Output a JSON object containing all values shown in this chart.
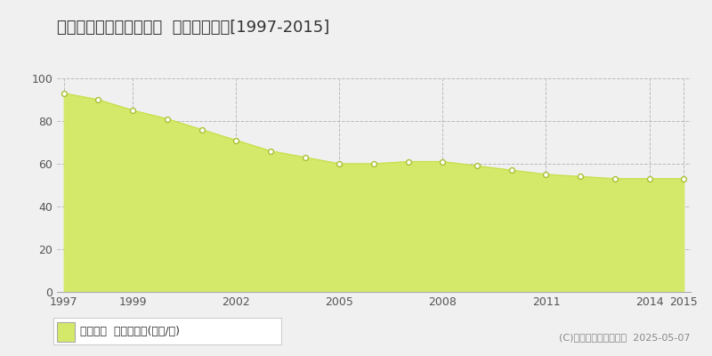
{
  "title": "大阪市住之江区北加賀屋  基準地価推移[1997-2015]",
  "years": [
    1997,
    1998,
    1999,
    2000,
    2001,
    2002,
    2003,
    2004,
    2005,
    2006,
    2007,
    2008,
    2009,
    2010,
    2011,
    2012,
    2013,
    2014,
    2015
  ],
  "values": [
    93,
    90,
    85,
    81,
    76,
    71,
    66,
    63,
    60,
    60,
    61,
    61,
    59,
    57,
    55,
    54,
    53,
    53,
    53
  ],
  "fill_color": "#d4e96a",
  "line_color": "#c8e050",
  "marker_facecolor": "white",
  "marker_edgecolor": "#a8c030",
  "background_color": "#f0f0f0",
  "plot_bg_color": "#f0f0f0",
  "grid_color": "#bbbbbb",
  "ylim": [
    0,
    100
  ],
  "yticks": [
    0,
    20,
    40,
    60,
    80,
    100
  ],
  "xticks": [
    1997,
    1999,
    2002,
    2005,
    2008,
    2011,
    2014,
    2015
  ],
  "legend_label": "基準地価  平均坤単価(万円/坤)",
  "copyright_text": "(C)土地価格ドットコム  2025-05-07",
  "title_fontsize": 13,
  "tick_fontsize": 9,
  "legend_fontsize": 9,
  "copyright_fontsize": 8
}
